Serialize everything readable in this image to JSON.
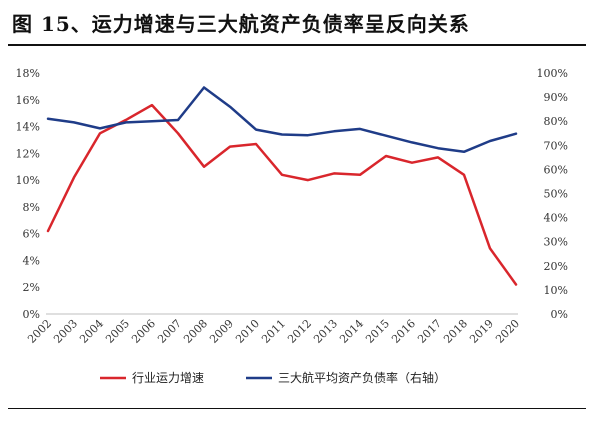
{
  "figure": {
    "title": "图 15、运力增速与三大航资产负债率呈反向关系"
  },
  "chart_data": {
    "type": "line",
    "title": "",
    "xlabel": "",
    "categories": [
      "2002",
      "2003",
      "2004",
      "2005",
      "2006",
      "2007",
      "2008",
      "2009",
      "2010",
      "2011",
      "2012",
      "2013",
      "2014",
      "2015",
      "2016",
      "2017",
      "2018",
      "2019",
      "2020"
    ],
    "y_left": {
      "ylim": [
        0,
        18
      ],
      "ticks": [
        "0%",
        "2%",
        "4%",
        "6%",
        "8%",
        "10%",
        "12%",
        "14%",
        "16%",
        "18%"
      ]
    },
    "y_right": {
      "ylim": [
        0,
        100
      ],
      "ticks": [
        "0%",
        "10%",
        "20%",
        "30%",
        "40%",
        "50%",
        "60%",
        "70%",
        "80%",
        "90%",
        "100%"
      ]
    },
    "grid": false,
    "legend_position": "bottom",
    "series": [
      {
        "name": "行业运力增速",
        "axis": "left",
        "color": "#d9262c",
        "values": [
          6.2,
          10.2,
          13.5,
          14.5,
          15.6,
          13.5,
          11.0,
          12.5,
          12.7,
          10.4,
          10.0,
          10.5,
          10.4,
          11.8,
          11.3,
          11.7,
          10.4,
          4.9,
          2.2
        ]
      },
      {
        "name": "三大航平均资产负债率（右轴）",
        "axis": "right",
        "color": "#1f3c88",
        "values": [
          81,
          79.5,
          77,
          79.5,
          80,
          80.5,
          94,
          86,
          76.5,
          74.5,
          74.2,
          75.8,
          76.8,
          74,
          71.2,
          68.8,
          67.3,
          71.8,
          74.8
        ]
      }
    ]
  }
}
